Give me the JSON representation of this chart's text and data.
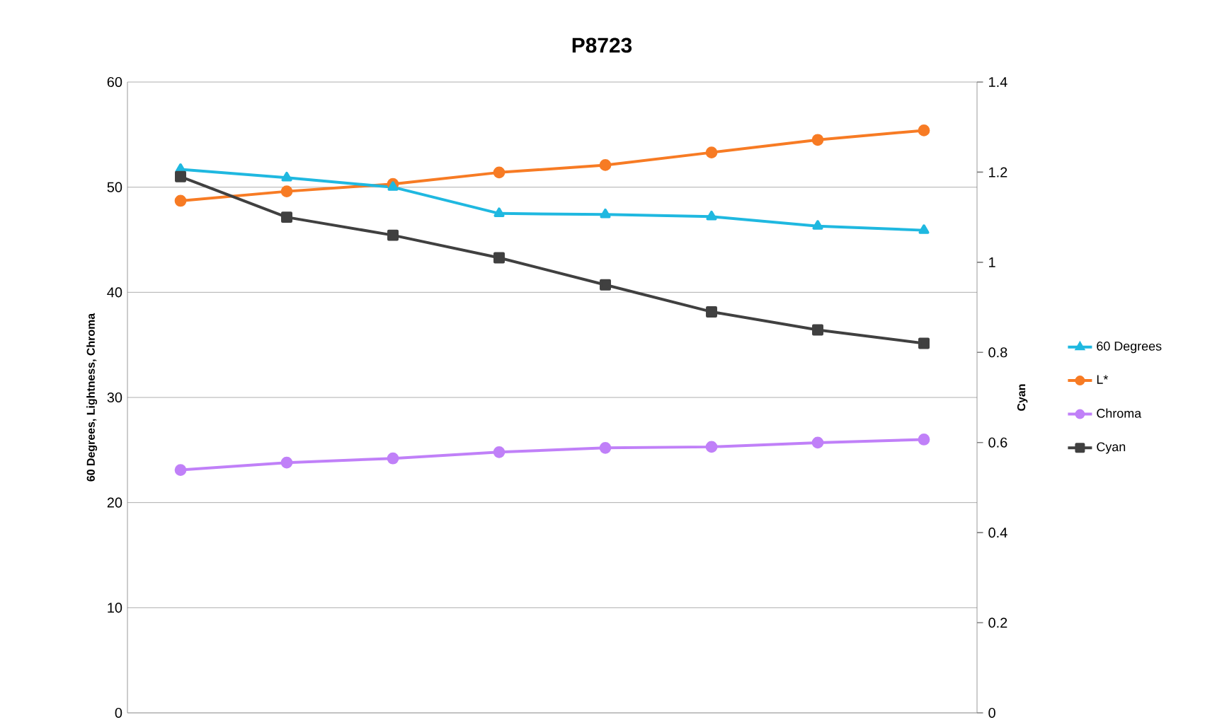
{
  "chart_data": {
    "type": "line",
    "title": "P8723",
    "ylabel": "60 Degrees, Lightness, Chroma",
    "y2label": "Cyan",
    "categories": [
      null,
      null,
      null,
      null,
      null,
      null,
      null,
      null
    ],
    "series": [
      {
        "name": "60 Degrees",
        "color": "#1fb8e0",
        "marker": "triangle",
        "values": [
          51.7,
          50.9,
          50.0,
          47.5,
          47.4,
          47.2,
          46.3,
          45.9
        ]
      },
      {
        "name": "L*",
        "color": "#f77b24",
        "marker": "circle",
        "values": [
          48.7,
          49.6,
          50.3,
          51.4,
          52.1,
          53.3,
          54.5,
          55.4
        ]
      },
      {
        "name": "Chroma",
        "color": "#c080f8",
        "marker": "circle",
        "values": [
          23.1,
          23.8,
          24.2,
          24.8,
          25.2,
          25.3,
          25.7,
          26.0
        ]
      },
      {
        "name": "Cyan",
        "color": "#404040",
        "marker": "square",
        "axis": "y2",
        "values": [
          1.19,
          1.1,
          1.06,
          1.01,
          0.95,
          0.89,
          0.85,
          0.82
        ]
      }
    ],
    "ylim": [
      0,
      60
    ],
    "yticks": [
      0,
      10,
      20,
      30,
      40,
      50,
      60
    ],
    "y2lim": [
      0,
      1.4
    ],
    "y2ticks": [
      0,
      0.2,
      0.4,
      0.6,
      0.8,
      1,
      1.2,
      1.4
    ],
    "grid": "y",
    "legend": "right"
  }
}
